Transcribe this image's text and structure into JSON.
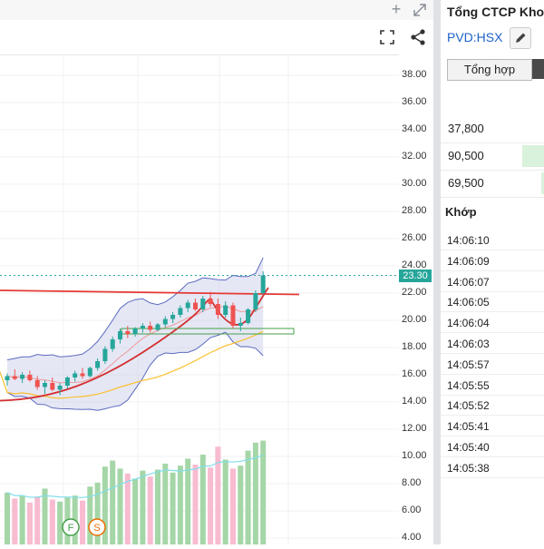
{
  "chart": {
    "last_price_label": "23.30",
    "price_ticks": [
      "38.00",
      "36.00",
      "34.00",
      "32.00",
      "30.00",
      "28.00",
      "26.00",
      "24.00",
      "22.00",
      "20.00",
      "18.00",
      "16.00",
      "14.00",
      "12.00",
      "10.00",
      "8.00",
      "6.00",
      "4.00"
    ],
    "markers": [
      "F",
      "S"
    ],
    "colors": {
      "up": "#26a69a",
      "down": "#ef5350",
      "band": "#5c6bc0",
      "support": "#e53935",
      "volume_up": "#a5d6a7",
      "volume_down": "#f8bbd0"
    }
  },
  "chart_data": {
    "type": "candlestick",
    "y_range": [
      4,
      38
    ],
    "last_price": 23.3,
    "resistance_level": 22.0,
    "candles": [
      {
        "o": 15.6,
        "h": 16.1,
        "l": 15.2,
        "c": 15.9
      },
      {
        "o": 15.9,
        "h": 16.4,
        "l": 15.6,
        "c": 15.7
      },
      {
        "o": 15.7,
        "h": 16.2,
        "l": 15.4,
        "c": 16.0
      },
      {
        "o": 16.0,
        "h": 16.3,
        "l": 15.5,
        "c": 15.6
      },
      {
        "o": 15.6,
        "h": 15.9,
        "l": 14.9,
        "c": 15.1
      },
      {
        "o": 15.1,
        "h": 15.6,
        "l": 14.6,
        "c": 15.4
      },
      {
        "o": 15.4,
        "h": 15.8,
        "l": 14.8,
        "c": 14.9
      },
      {
        "o": 14.9,
        "h": 15.4,
        "l": 14.5,
        "c": 15.2
      },
      {
        "o": 15.2,
        "h": 15.9,
        "l": 15.0,
        "c": 15.8
      },
      {
        "o": 15.8,
        "h": 16.3,
        "l": 15.5,
        "c": 16.1
      },
      {
        "o": 16.1,
        "h": 16.5,
        "l": 15.7,
        "c": 15.9
      },
      {
        "o": 15.9,
        "h": 16.6,
        "l": 15.8,
        "c": 16.5
      },
      {
        "o": 16.5,
        "h": 17.2,
        "l": 16.3,
        "c": 17.0
      },
      {
        "o": 17.0,
        "h": 18.1,
        "l": 16.8,
        "c": 17.9
      },
      {
        "o": 17.9,
        "h": 18.8,
        "l": 17.7,
        "c": 18.6
      },
      {
        "o": 18.6,
        "h": 19.4,
        "l": 18.3,
        "c": 19.2
      },
      {
        "o": 19.2,
        "h": 19.6,
        "l": 18.7,
        "c": 19.0
      },
      {
        "o": 19.0,
        "h": 19.5,
        "l": 18.8,
        "c": 19.4
      },
      {
        "o": 19.4,
        "h": 19.8,
        "l": 19.1,
        "c": 19.6
      },
      {
        "o": 19.6,
        "h": 19.9,
        "l": 19.1,
        "c": 19.3
      },
      {
        "o": 19.3,
        "h": 19.8,
        "l": 19.2,
        "c": 19.7
      },
      {
        "o": 19.7,
        "h": 20.3,
        "l": 19.5,
        "c": 20.1
      },
      {
        "o": 20.1,
        "h": 20.6,
        "l": 19.8,
        "c": 20.4
      },
      {
        "o": 20.4,
        "h": 21.1,
        "l": 20.2,
        "c": 20.9
      },
      {
        "o": 20.9,
        "h": 21.5,
        "l": 20.6,
        "c": 21.3
      },
      {
        "o": 21.3,
        "h": 21.6,
        "l": 20.7,
        "c": 20.8
      },
      {
        "o": 20.8,
        "h": 21.8,
        "l": 20.6,
        "c": 21.6
      },
      {
        "o": 21.6,
        "h": 22.1,
        "l": 21.0,
        "c": 21.2
      },
      {
        "o": 21.2,
        "h": 21.6,
        "l": 20.1,
        "c": 20.4
      },
      {
        "o": 20.4,
        "h": 21.4,
        "l": 20.2,
        "c": 21.1
      },
      {
        "o": 21.1,
        "h": 21.3,
        "l": 19.4,
        "c": 19.6
      },
      {
        "o": 19.6,
        "h": 20.2,
        "l": 19.2,
        "c": 19.8
      },
      {
        "o": 19.8,
        "h": 20.9,
        "l": 19.7,
        "c": 20.8
      },
      {
        "o": 20.8,
        "h": 22.2,
        "l": 20.6,
        "c": 22.0
      },
      {
        "o": 22.0,
        "h": 23.6,
        "l": 21.9,
        "c": 23.3
      }
    ],
    "volumes": [
      5.2,
      4.6,
      4.9,
      4.2,
      4.8,
      5.6,
      4.5,
      4.3,
      4.7,
      4.9,
      4.4,
      5.8,
      6.2,
      7.8,
      8.4,
      7.6,
      7.1,
      6.6,
      7.4,
      6.8,
      7.5,
      8.1,
      7.2,
      7.9,
      8.6,
      8.0,
      9.0,
      7.7,
      9.8,
      8.5,
      7.6,
      7.9,
      9.4,
      10.2,
      10.4
    ]
  },
  "sidebar": {
    "company_name": "Tổng CTCP Khoan",
    "ticker": "PVD:HSX",
    "tab_label": "Tổng hợp",
    "prices": [
      "37,800",
      "90,500",
      "69,500"
    ],
    "match_header": "Khớp",
    "times": [
      "14:06:10",
      "14:06:09",
      "14:06:07",
      "14:06:05",
      "14:06:04",
      "14:06:03",
      "14:05:57",
      "14:05:55",
      "14:05:52",
      "14:05:41",
      "14:05:40",
      "14:05:38"
    ]
  }
}
